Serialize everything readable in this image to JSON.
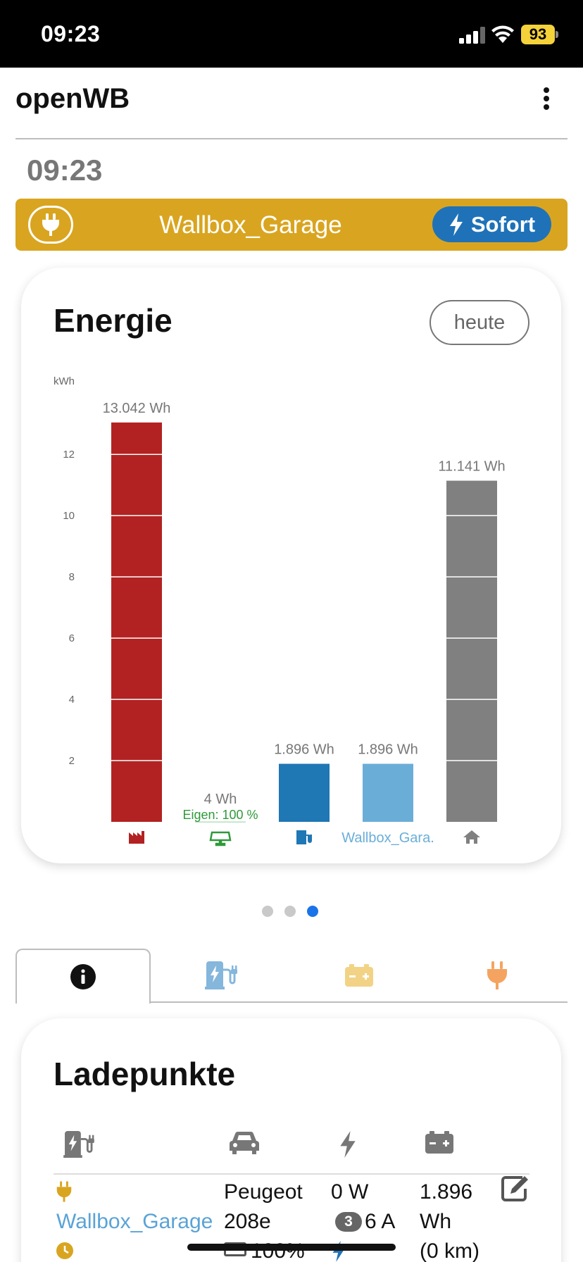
{
  "status_bar": {
    "time": "09:23",
    "battery": "93"
  },
  "app": {
    "title": "openWB",
    "clock": "09:23"
  },
  "chargepoint_bar": {
    "name": "Wallbox_Garage",
    "mode": "Sofort"
  },
  "energy_card": {
    "title": "Energie",
    "period_button": "heute"
  },
  "chart_data": {
    "type": "bar",
    "ylabel": "kWh",
    "ylim": [
      0,
      13.5
    ],
    "yticks": [
      2,
      4,
      6,
      8,
      10,
      12
    ],
    "bars": [
      {
        "value": 13.042,
        "label": "13.042 Wh",
        "color": "#b22222",
        "icon": "grid-import-icon"
      },
      {
        "value": 0.004,
        "label": "4 Wh",
        "sublabel": "Eigen: 100 %",
        "color": "#2e9a3a",
        "icon": "solar-panel-icon"
      },
      {
        "value": 1.896,
        "label": "1.896 Wh",
        "color": "#1f77b4",
        "icon": "charging-station-icon"
      },
      {
        "value": 1.896,
        "label": "1.896 Wh",
        "color": "#6aaed8",
        "category": "Wallbox_Gara."
      },
      {
        "value": 11.141,
        "label": "11.141 Wh",
        "color": "#808080",
        "icon": "house-icon"
      }
    ],
    "colors": {
      "grid": "#b22222",
      "pv": "#2e9a3a",
      "charge": "#1f77b4",
      "wallbox": "#6aaed8",
      "house": "#808080"
    }
  },
  "tabs": [
    {
      "name": "info",
      "icon": "info-icon",
      "active": true
    },
    {
      "name": "chargepoints",
      "icon": "charging-station-icon"
    },
    {
      "name": "battery",
      "icon": "battery-icon"
    },
    {
      "name": "devices",
      "icon": "plug-icon"
    }
  ],
  "ladepunkte": {
    "title": "Ladepunkte",
    "row": {
      "name": "Wallbox_Garage",
      "vehicle_line1": "Peugeot",
      "vehicle_line2": "208e",
      "vehicle_soc": "100%",
      "power": "0 W",
      "phases": "3",
      "current": "6 A",
      "energy_line1": "1.896",
      "energy_line2": "Wh",
      "range": "(0 km)"
    }
  }
}
